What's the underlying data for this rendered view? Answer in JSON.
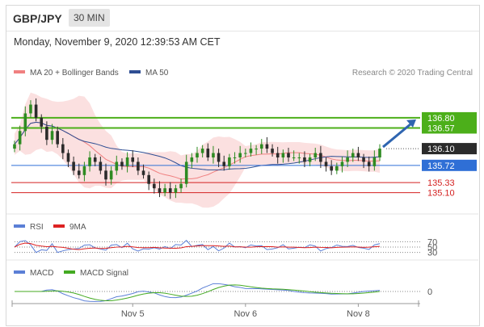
{
  "header": {
    "symbol": "GBP/JPY",
    "timeframe": "30 MIN"
  },
  "datetime": "Monday, November 9, 2020 12:39:53 AM CET",
  "credit": "Research © 2020 Trading Central",
  "legends": {
    "price": [
      {
        "label": "MA 20 + Bollinger Bands",
        "color": "#f08080"
      },
      {
        "label": "MA 50",
        "color": "#2f4e93"
      }
    ],
    "rsi": [
      {
        "label": "RSI",
        "color": "#5b7fd6"
      },
      {
        "label": "9MA",
        "color": "#dd2222"
      }
    ],
    "macd": [
      {
        "label": "MACD",
        "color": "#5b7fd6"
      },
      {
        "label": "MACD Signal",
        "color": "#44aa22"
      }
    ]
  },
  "colors": {
    "up": "#2e8b22",
    "down": "#2b2b2b",
    "resistance": "#4caf1a",
    "support_blue": "#2f6fd6",
    "support_red": "#d42020",
    "current": "#2b2b2b",
    "arrow": "#2f65b0",
    "band": "#fadada"
  },
  "chart_data": {
    "type": "candlestick",
    "price_ylim": [
      134.8,
      137.55
    ],
    "levels": [
      {
        "value": 136.8,
        "label": "136.80",
        "kind": "resistance"
      },
      {
        "value": 136.57,
        "label": "136.57",
        "kind": "resistance"
      },
      {
        "value": 136.1,
        "label": "136.10",
        "kind": "current"
      },
      {
        "value": 135.72,
        "label": "135.72",
        "kind": "pivot"
      },
      {
        "value": 135.33,
        "label": "135.33",
        "kind": "support"
      },
      {
        "value": 135.1,
        "label": "135.10",
        "kind": "support"
      }
    ],
    "forecast_arrow": {
      "from_value": 136.1,
      "to_value": 136.8
    },
    "close": [
      136.2,
      136.5,
      136.9,
      137.1,
      136.8,
      136.6,
      136.3,
      136.5,
      136.2,
      136.0,
      135.8,
      135.6,
      135.5,
      135.7,
      135.9,
      135.8,
      135.6,
      135.4,
      135.6,
      135.8,
      135.7,
      135.9,
      135.8,
      135.6,
      135.5,
      135.3,
      135.2,
      135.1,
      135.2,
      135.1,
      135.2,
      135.3,
      135.8,
      135.9,
      136.0,
      136.1,
      135.9,
      136.0,
      135.8,
      135.7,
      135.9,
      135.9,
      136.0,
      136.0,
      136.1,
      136.1,
      136.2,
      136.1,
      136.0,
      135.9,
      136.0,
      135.9,
      135.9,
      135.9,
      135.8,
      135.9,
      136.0,
      135.8,
      135.7,
      135.6,
      135.7,
      135.8,
      135.9,
      136.0,
      135.9,
      135.8,
      135.7,
      135.9,
      136.1
    ],
    "rsi_axis": [
      70,
      50,
      30
    ],
    "macd_axis": [
      0
    ],
    "x_ticks": [
      "Nov 5",
      "Nov 6",
      "Nov 8"
    ]
  }
}
